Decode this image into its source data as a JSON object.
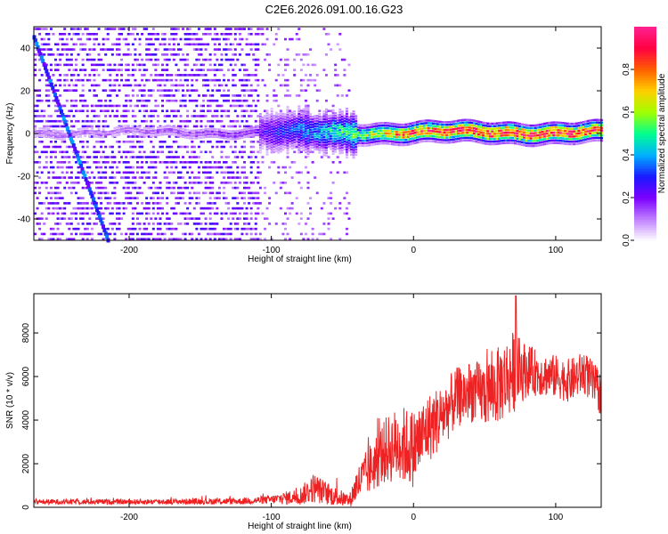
{
  "title": "C2E6.2026.091.00.16.G23",
  "chart_data": [
    {
      "type": "heatmap",
      "name": "spectrogram",
      "xlabel": "Height of straight line (km)",
      "ylabel": "Frequency (Hz)",
      "xlim": [
        -267,
        132
      ],
      "ylim": [
        -50,
        50
      ],
      "xticks": [
        -200,
        -100,
        0,
        100
      ],
      "yticks": [
        -40,
        -20,
        0,
        20,
        40
      ],
      "colorbar": {
        "label": "Normalized spectral amplitude",
        "range": [
          0.0,
          1.0
        ],
        "ticks": [
          "0.0",
          "0.2",
          "0.4",
          "0.6",
          "0.8"
        ],
        "colormap": [
          "#ffffff",
          "#c080ff",
          "#7b00ff",
          "#1a1aff",
          "#00b0ff",
          "#00ff90",
          "#a0ff00",
          "#ffd000",
          "#ff6000",
          "#ff0040",
          "#ff2090"
        ]
      },
      "features": [
        {
          "kind": "drifting line",
          "from": [
            -267,
            45
          ],
          "to": [
            -215,
            -50
          ],
          "amplitude": 0.25
        },
        {
          "kind": "steady carrier",
          "frequency": 0,
          "x_range": [
            -267,
            132
          ],
          "amplitude_profile": [
            [
              -267,
              0.12
            ],
            [
              -200,
              0.12
            ],
            [
              -120,
              0.18
            ],
            [
              -90,
              0.3
            ],
            [
              -60,
              0.45
            ],
            [
              -40,
              0.55
            ],
            [
              -20,
              0.7
            ],
            [
              0,
              0.85
            ],
            [
              30,
              0.9
            ],
            [
              60,
              0.95
            ],
            [
              90,
              0.95
            ],
            [
              132,
              0.85
            ]
          ]
        },
        {
          "kind": "noise floor",
          "x_range": [
            -267,
            -45
          ],
          "amplitude": 0.15
        }
      ]
    },
    {
      "type": "line",
      "name": "snr",
      "xlabel": "Height of straight line (km)",
      "ylabel": "SNR (10 * v/v)",
      "xlim": [
        -267,
        132
      ],
      "ylim": [
        0,
        9800
      ],
      "xticks": [
        -200,
        -100,
        0,
        100
      ],
      "yticks": [
        0,
        2000,
        4000,
        6000,
        8000
      ],
      "color": "#ee2222",
      "envelope": [
        {
          "x": -267,
          "mean": 250,
          "spread": 120
        },
        {
          "x": -200,
          "mean": 250,
          "spread": 120
        },
        {
          "x": -120,
          "mean": 280,
          "spread": 150
        },
        {
          "x": -100,
          "mean": 350,
          "spread": 200
        },
        {
          "x": -80,
          "mean": 500,
          "spread": 400
        },
        {
          "x": -70,
          "mean": 900,
          "spread": 700
        },
        {
          "x": -60,
          "mean": 600,
          "spread": 500
        },
        {
          "x": -45,
          "mean": 300,
          "spread": 300
        },
        {
          "x": -40,
          "mean": 1000,
          "spread": 800
        },
        {
          "x": -30,
          "mean": 1800,
          "spread": 1200
        },
        {
          "x": -20,
          "mean": 2600,
          "spread": 1500
        },
        {
          "x": -10,
          "mean": 2900,
          "spread": 1800
        },
        {
          "x": 0,
          "mean": 2700,
          "spread": 1800
        },
        {
          "x": 10,
          "mean": 3600,
          "spread": 1600
        },
        {
          "x": 20,
          "mean": 4200,
          "spread": 1500
        },
        {
          "x": 30,
          "mean": 5000,
          "spread": 1400
        },
        {
          "x": 40,
          "mean": 5300,
          "spread": 1400
        },
        {
          "x": 50,
          "mean": 5200,
          "spread": 1500
        },
        {
          "x": 60,
          "mean": 5600,
          "spread": 1800
        },
        {
          "x": 70,
          "mean": 6200,
          "spread": 1900
        },
        {
          "x": 80,
          "mean": 6300,
          "spread": 1200
        },
        {
          "x": 90,
          "mean": 6100,
          "spread": 1000
        },
        {
          "x": 100,
          "mean": 6000,
          "spread": 1000
        },
        {
          "x": 110,
          "mean": 5800,
          "spread": 1000
        },
        {
          "x": 120,
          "mean": 6200,
          "spread": 1000
        },
        {
          "x": 132,
          "mean": 5200,
          "spread": 1000
        }
      ],
      "peak": {
        "x": 72,
        "y": 9700
      }
    }
  ]
}
